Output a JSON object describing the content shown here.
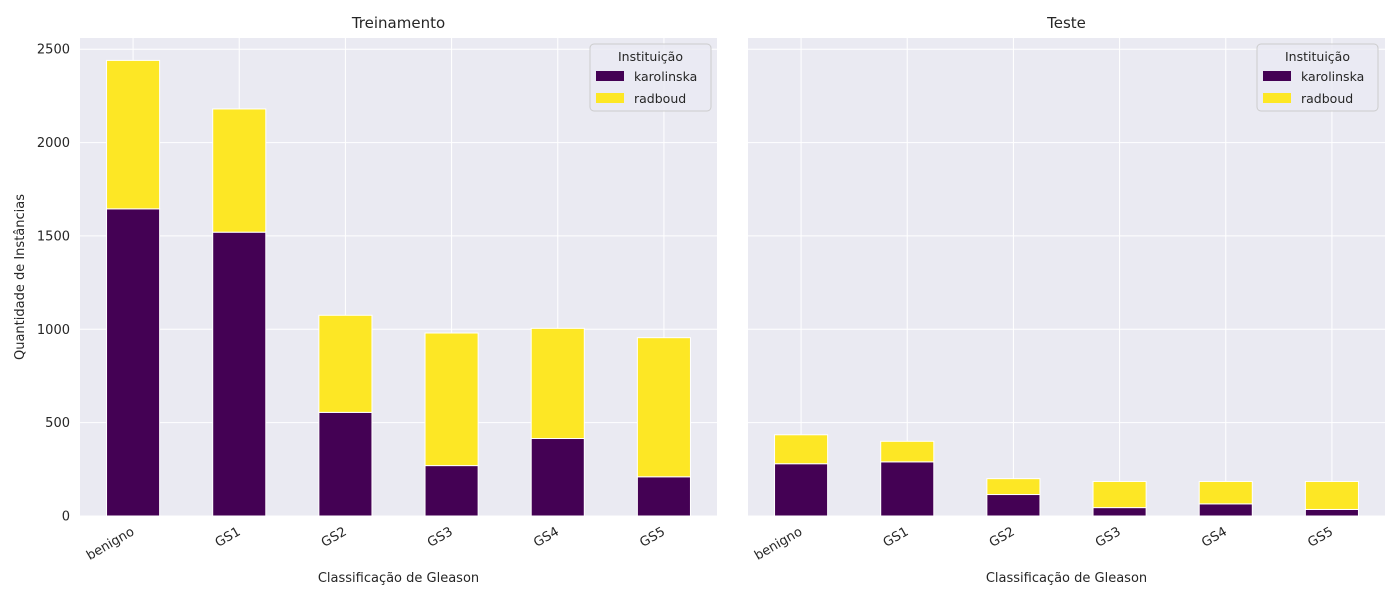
{
  "colors": {
    "karolinska": "#440154",
    "radboud": "#fde725",
    "plot_bg": "#eaeaf2",
    "grid": "#ffffff"
  },
  "chart_data": [
    {
      "type": "bar",
      "stacked": true,
      "title": "Treinamento",
      "xlabel": "Classificação de Gleason",
      "ylabel": "Quantidade de Instâncias",
      "categories": [
        "benigno",
        "GS1",
        "GS2",
        "GS3",
        "GS4",
        "GS5"
      ],
      "series": [
        {
          "name": "karolinska",
          "values": [
            1645,
            1520,
            555,
            270,
            415,
            210
          ]
        },
        {
          "name": "radboud",
          "values": [
            795,
            660,
            520,
            710,
            590,
            745
          ]
        }
      ],
      "ylim": [
        0,
        2560
      ],
      "yticks": [
        0,
        500,
        1000,
        1500,
        2000,
        2500
      ],
      "legend": {
        "title": "Instituição",
        "placement": "top-right"
      },
      "grid": true
    },
    {
      "type": "bar",
      "stacked": true,
      "title": "Teste",
      "xlabel": "Classificação de Gleason",
      "ylabel": "",
      "categories": [
        "benigno",
        "GS1",
        "GS2",
        "GS3",
        "GS4",
        "GS5"
      ],
      "series": [
        {
          "name": "karolinska",
          "values": [
            280,
            290,
            115,
            45,
            65,
            35
          ]
        },
        {
          "name": "radboud",
          "values": [
            155,
            110,
            85,
            140,
            120,
            150
          ]
        }
      ],
      "ylim": [
        0,
        2560
      ],
      "yticks": [
        0,
        500,
        1000,
        1500,
        2000,
        2500
      ],
      "show_yticklabels": false,
      "legend": {
        "title": "Instituição",
        "placement": "top-right"
      },
      "grid": true
    }
  ]
}
